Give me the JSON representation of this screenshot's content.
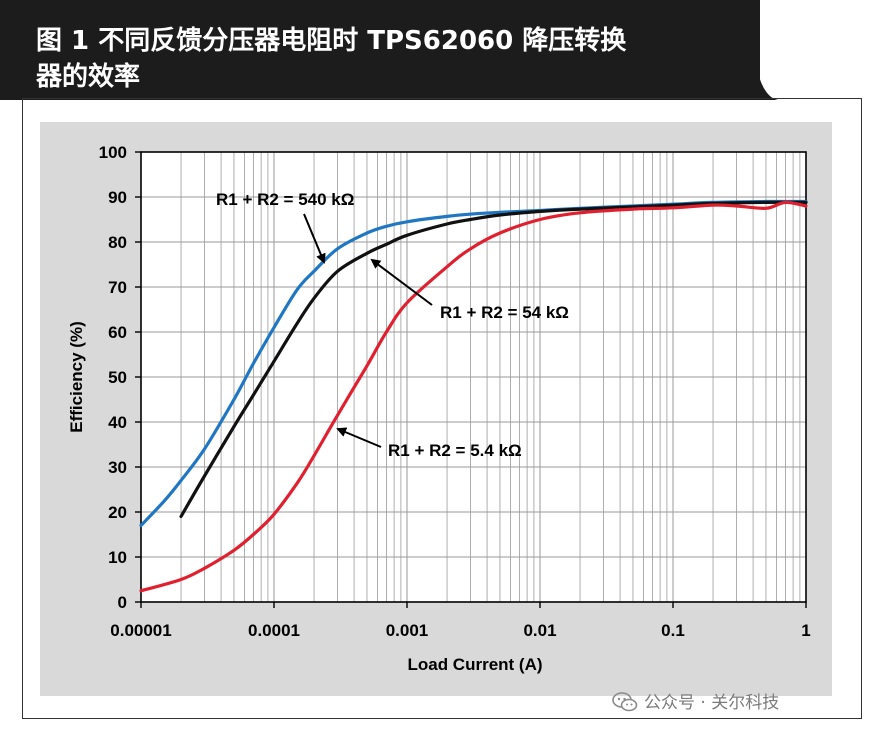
{
  "title": {
    "line1": "图 1 不同反馈分压器电阻时 TPS62060 降压转换",
    "line2": "器的效率"
  },
  "watermark": {
    "text": "公众号 · 关尔科技"
  },
  "colors": {
    "banner": "#1c1c1c",
    "panel": "#d9d9d9",
    "plot_bg": "#ffffff",
    "grid": "#9a9a9a",
    "axis": "#000000"
  },
  "chart_data": {
    "type": "line",
    "title": "",
    "xlabel": "Load Current (A)",
    "ylabel": "Efficiency (%)",
    "xscale": "log",
    "xlim": [
      1e-05,
      1
    ],
    "ylim": [
      0,
      100
    ],
    "grid": true,
    "x_ticks": [
      1e-05,
      0.0001,
      0.001,
      0.01,
      0.1,
      1
    ],
    "x_tick_labels": [
      "0.00001",
      "0.0001",
      "0.001",
      "0.01",
      "0.1",
      "1"
    ],
    "y_ticks": [
      0,
      10,
      20,
      30,
      40,
      50,
      60,
      70,
      80,
      90,
      100
    ],
    "y_tick_labels": [
      "0",
      "10",
      "20",
      "30",
      "40",
      "50",
      "60",
      "70",
      "80",
      "90",
      "100"
    ],
    "series": [
      {
        "name": "R1 + R2 = 540 kΩ",
        "color": "#1f77c4",
        "x": [
          1e-05,
          1.5e-05,
          2e-05,
          3e-05,
          5e-05,
          7e-05,
          0.0001,
          0.00015,
          0.0002,
          0.0003,
          0.0005,
          0.0007,
          0.001,
          0.002,
          0.003,
          0.005,
          0.01,
          0.02,
          0.05,
          0.1,
          0.2,
          0.5,
          1
        ],
        "y": [
          17,
          22.5,
          27,
          34,
          45,
          53,
          61,
          69.5,
          73.5,
          78.5,
          82,
          83.5,
          84.5,
          85.7,
          86.2,
          86.6,
          87,
          87.5,
          88,
          88.4,
          88.8,
          89,
          89
        ]
      },
      {
        "name": "R1 + R2 = 54 kΩ",
        "color": "#111111",
        "x": [
          2e-05,
          3e-05,
          5e-05,
          7e-05,
          0.0001,
          0.00015,
          0.0002,
          0.0003,
          0.0005,
          0.0007,
          0.001,
          0.002,
          0.003,
          0.005,
          0.01,
          0.02,
          0.05,
          0.1,
          0.2,
          0.5,
          1
        ],
        "y": [
          19,
          28,
          39,
          46,
          53.5,
          62,
          67.5,
          73.5,
          77.5,
          79.5,
          81.5,
          84,
          85,
          86,
          86.8,
          87.3,
          87.8,
          88.2,
          88.6,
          88.8,
          88.8
        ]
      },
      {
        "name": "R1 + R2 = 5.4 kΩ",
        "color": "#e0202e",
        "x": [
          1e-05,
          2e-05,
          3e-05,
          5e-05,
          7e-05,
          0.0001,
          0.00015,
          0.0002,
          0.0003,
          0.0005,
          0.0007,
          0.001,
          0.002,
          0.003,
          0.005,
          0.01,
          0.02,
          0.05,
          0.1,
          0.2,
          0.3,
          0.5,
          0.7,
          1
        ],
        "y": [
          2.5,
          5,
          7.5,
          11.5,
          15,
          19.5,
          26.5,
          32.5,
          41.5,
          52.5,
          60,
          66.5,
          74.5,
          78.5,
          82,
          85,
          86.5,
          87.3,
          87.6,
          88.2,
          88,
          87.5,
          88.8,
          88
        ]
      }
    ],
    "annotations": [
      {
        "text": "R1 + R2 = 540 kΩ",
        "series": 0
      },
      {
        "text": "R1 + R2 = 54 kΩ",
        "series": 1
      },
      {
        "text": "R1 + R2 = 5.4 kΩ",
        "series": 2
      }
    ]
  }
}
